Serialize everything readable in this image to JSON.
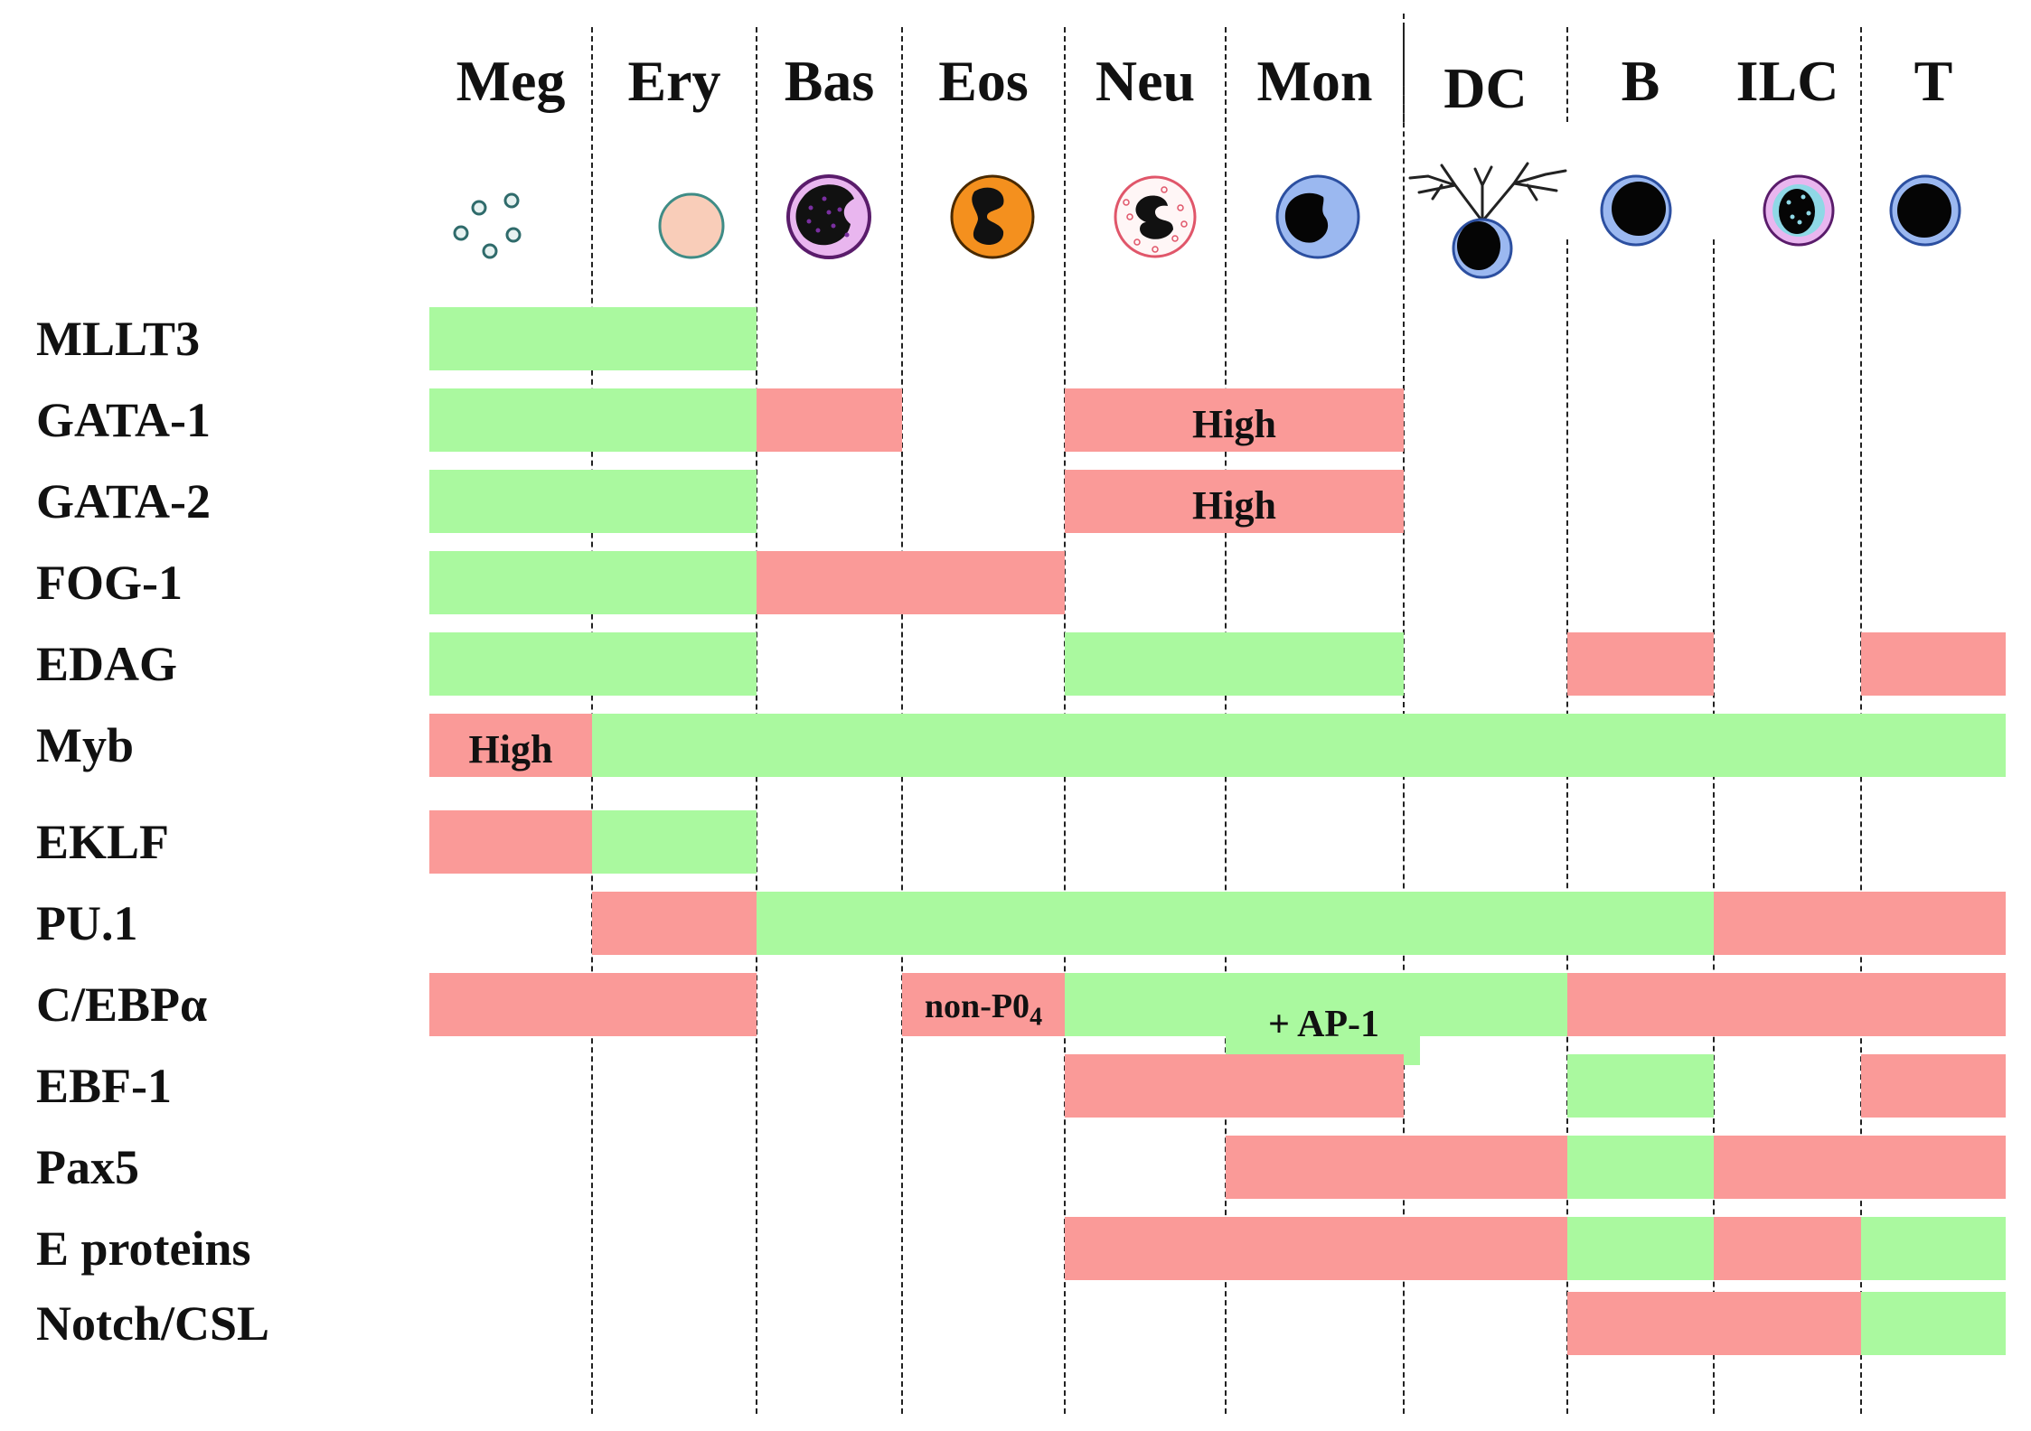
{
  "columns": [
    "Meg",
    "Ery",
    "Bas",
    "Eos",
    "Neu",
    "Mon",
    "DC",
    "B",
    "ILC",
    "T"
  ],
  "icons": [
    "platelets-icon",
    "erythrocyte-icon",
    "basophil-icon",
    "eosinophil-icon",
    "neutrophil-icon",
    "monocyte-icon",
    "dendritic-cell-icon",
    "b-cell-icon",
    "ilc-icon",
    "t-cell-icon"
  ],
  "colors": {
    "required": "#aaf99f",
    "repressive": "#fa9a98"
  },
  "rows": [
    {
      "name": "MLLT3",
      "segments": [
        {
          "from": 0,
          "to": 1,
          "state": "required"
        }
      ]
    },
    {
      "name": "GATA-1",
      "segments": [
        {
          "from": 0,
          "to": 1,
          "state": "required"
        },
        {
          "from": 2,
          "to": 2,
          "state": "repressive"
        },
        {
          "from": 4,
          "to": 5,
          "state": "repressive",
          "note": "High"
        }
      ]
    },
    {
      "name": "GATA-2",
      "segments": [
        {
          "from": 0,
          "to": 1,
          "state": "required"
        },
        {
          "from": 4,
          "to": 5,
          "state": "repressive",
          "note": "High"
        }
      ]
    },
    {
      "name": "FOG-1",
      "segments": [
        {
          "from": 0,
          "to": 1,
          "state": "required"
        },
        {
          "from": 2,
          "to": 3,
          "state": "repressive"
        }
      ]
    },
    {
      "name": "EDAG",
      "segments": [
        {
          "from": 0,
          "to": 1,
          "state": "required"
        },
        {
          "from": 4,
          "to": 5,
          "state": "required"
        },
        {
          "from": 7,
          "to": 7,
          "state": "repressive"
        },
        {
          "from": 9,
          "to": 9,
          "state": "repressive"
        }
      ]
    },
    {
      "name": "Myb",
      "segments": [
        {
          "from": 0,
          "to": 0,
          "state": "repressive",
          "note": "High"
        },
        {
          "from": 1,
          "to": 9,
          "state": "required"
        }
      ]
    },
    {
      "name": "EKLF",
      "segments": [
        {
          "from": 0,
          "to": 0,
          "state": "repressive"
        },
        {
          "from": 1,
          "to": 1,
          "state": "required"
        }
      ]
    },
    {
      "name": "PU.1",
      "segments": [
        {
          "from": 1,
          "to": 1,
          "state": "repressive"
        },
        {
          "from": 2,
          "to": 7,
          "state": "required"
        },
        {
          "from": 8,
          "to": 9,
          "state": "repressive"
        }
      ]
    },
    {
      "name": "C/EBPα",
      "segments": [
        {
          "from": 0,
          "to": 1,
          "state": "repressive"
        },
        {
          "from": 3,
          "to": 3,
          "state": "repressive",
          "note": "non-P0",
          "note_sub": "4"
        },
        {
          "from": 4,
          "to": 6,
          "state": "required",
          "note": "+ AP-1"
        },
        {
          "from": 7,
          "to": 9,
          "state": "repressive"
        }
      ]
    },
    {
      "name": "EBF-1",
      "segments": [
        {
          "from": 4,
          "to": 5,
          "state": "repressive"
        },
        {
          "from": 7,
          "to": 7,
          "state": "required"
        },
        {
          "from": 9,
          "to": 9,
          "state": "repressive"
        }
      ]
    },
    {
      "name": "Pax5",
      "segments": [
        {
          "from": 5,
          "to": 6,
          "state": "repressive"
        },
        {
          "from": 7,
          "to": 7,
          "state": "required"
        },
        {
          "from": 8,
          "to": 9,
          "state": "repressive"
        }
      ]
    },
    {
      "name": "E proteins",
      "segments": [
        {
          "from": 4,
          "to": 6,
          "state": "repressive"
        },
        {
          "from": 7,
          "to": 7,
          "state": "required"
        },
        {
          "from": 8,
          "to": 8,
          "state": "repressive"
        },
        {
          "from": 9,
          "to": 9,
          "state": "required"
        }
      ]
    },
    {
      "name": "Notch/CSL",
      "segments": [
        {
          "from": 7,
          "to": 8,
          "state": "repressive"
        },
        {
          "from": 9,
          "to": 9,
          "state": "required"
        }
      ]
    }
  ]
}
